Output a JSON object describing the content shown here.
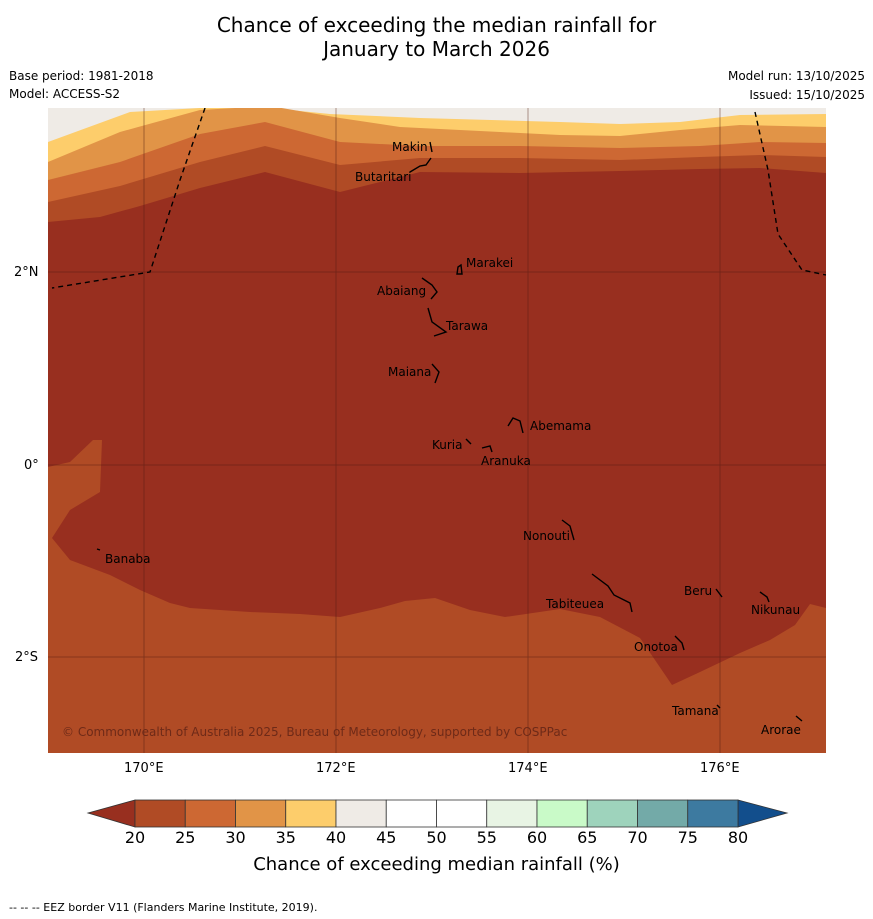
{
  "title": {
    "line1": "Chance of exceeding the median rainfall for",
    "line2": "January to March 2026"
  },
  "meta": {
    "base_period": "Base period: 1981-2018",
    "model": "Model: ACCESS-S2",
    "model_run": "Model run: 13/10/2025",
    "issued": "Issued: 15/10/2025"
  },
  "map": {
    "lon_ticks": [
      "170°E",
      "172°E",
      "174°E",
      "176°E"
    ],
    "lat_ticks": [
      "2°N",
      "0°",
      "2°S"
    ],
    "places": [
      "Makin",
      "Butaritari",
      "Marakei",
      "Abaiang",
      "Tarawa",
      "Maiana",
      "Abemama",
      "Kuria",
      "Aranuka",
      "Banaba",
      "Nonouti",
      "Beru",
      "Tabiteuea",
      "Nikunau",
      "Onotoa",
      "Tamana",
      "Arorae"
    ],
    "copyright": "© Commonwealth of Australia 2025, Bureau of Meteorology, supported by COSPPac"
  },
  "colorbar": {
    "levels": [
      "20",
      "25",
      "30",
      "35",
      "40",
      "45",
      "50",
      "55",
      "60",
      "65",
      "70",
      "75",
      "80"
    ],
    "colors": [
      "#b04b25",
      "#cd6833",
      "#e19447",
      "#fdcd6b",
      "#efebe6",
      "#ffffff",
      "#ffffff",
      "#e8f4e4",
      "#c9fac8",
      "#9ed3bc",
      "#73aaa8",
      "#3d7aa0"
    ],
    "under_color": "#982f1f",
    "over_color": "#124e8c",
    "label": "Chance of exceeding median rainfall (%)"
  },
  "footer": "--  --  -- EEZ border V11 (Flanders Marine Institute, 2019)."
}
